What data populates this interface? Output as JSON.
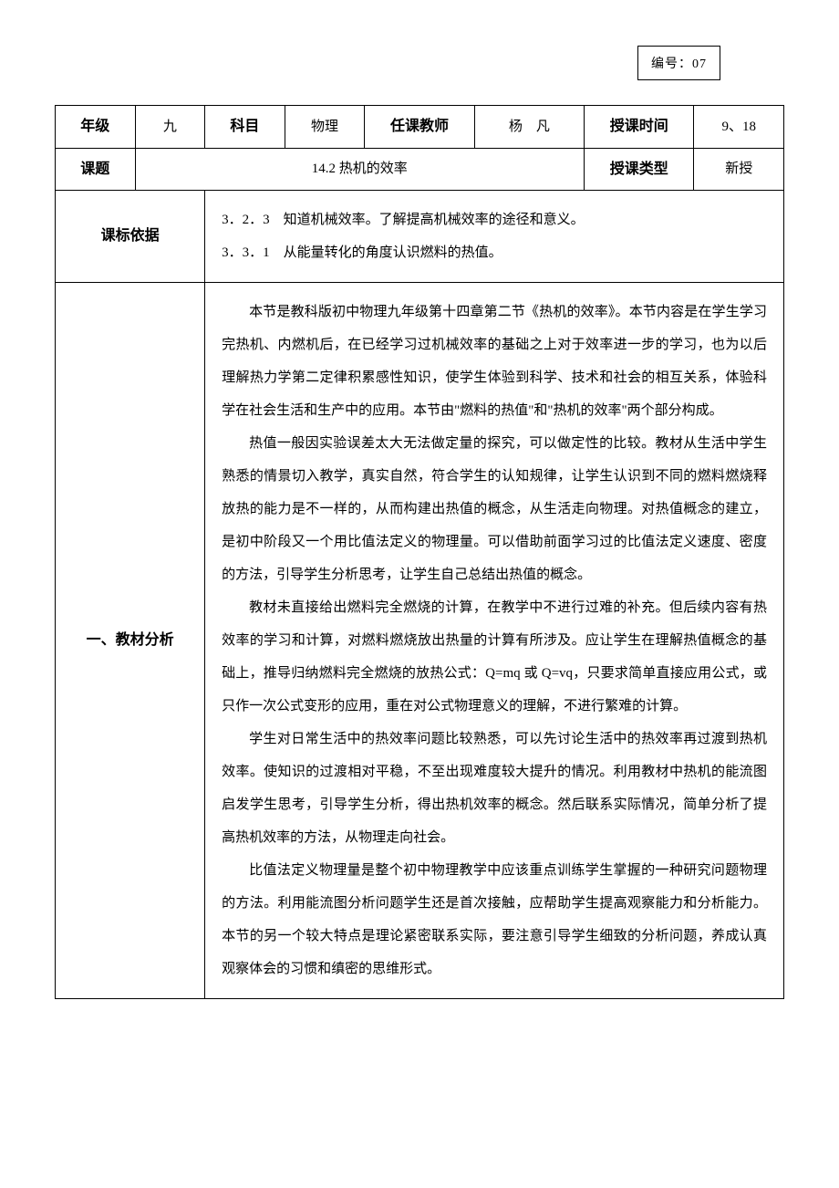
{
  "doc_number": "编号：07",
  "header": {
    "grade_label": "年级",
    "grade_value": "九",
    "subject_label": "科目",
    "subject_value": "物理",
    "teacher_label": "任课教师",
    "teacher_value": "杨　凡",
    "time_label": "授课时间",
    "time_value": "9、18",
    "topic_label": "课题",
    "topic_value": "14.2 热机的效率",
    "type_label": "授课类型",
    "type_value": "新授"
  },
  "standard": {
    "label": "课标依据",
    "line1": "3．2．3　知道机械效率。了解提高机械效率的途径和意义。",
    "line2": "3．3．1　从能量转化的角度认识燃料的热值。"
  },
  "analysis": {
    "label": "一、教材分析",
    "p1": "本节是教科版初中物理九年级第十四章第二节《热机的效率》。本节内容是在学生学习完热机、内燃机后，在已经学习过机械效率的基础之上对于效率进一步的学习，也为以后理解热力学第二定律积累感性知识，使学生体验到科学、技术和社会的相互关系，体验科学在社会生活和生产中的应用。本节由\"燃料的热值\"和\"热机的效率\"两个部分构成。",
    "p2": "热值一般因实验误差太大无法做定量的探究，可以做定性的比较。教材从生活中学生熟悉的情景切入教学，真实自然，符合学生的认知规律，让学生认识到不同的燃料燃烧释放热的能力是不一样的，从而构建出热值的概念，从生活走向物理。对热值概念的建立，是初中阶段又一个用比值法定义的物理量。可以借助前面学习过的比值法定义速度、密度的方法，引导学生分析思考，让学生自己总结出热值的概念。",
    "p3": "教材未直接给出燃料完全燃烧的计算，在教学中不进行过难的补充。但后续内容有热效率的学习和计算，对燃料燃烧放出热量的计算有所涉及。应让学生在理解热值概念的基础上，推导归纳燃料完全燃烧的放热公式：Q=mq 或 Q=vq，只要求简单直接应用公式，或只作一次公式变形的应用，重在对公式物理意义的理解，不进行繁难的计算。",
    "p4": "学生对日常生活中的热效率问题比较熟悉，可以先讨论生活中的热效率再过渡到热机效率。使知识的过渡相对平稳，不至出现难度较大提升的情况。利用教材中热机的能流图启发学生思考，引导学生分析，得出热机效率的概念。然后联系实际情况，简单分析了提高热机效率的方法，从物理走向社会。",
    "p5": "比值法定义物理量是整个初中物理教学中应该重点训练学生掌握的一种研究问题物理的方法。利用能流图分析问题学生还是首次接触，应帮助学生提高观察能力和分析能力。本节的另一个较大特点是理论紧密联系实际，要注意引导学生细致的分析问题，养成认真观察体会的习惯和缜密的思维形式。"
  }
}
